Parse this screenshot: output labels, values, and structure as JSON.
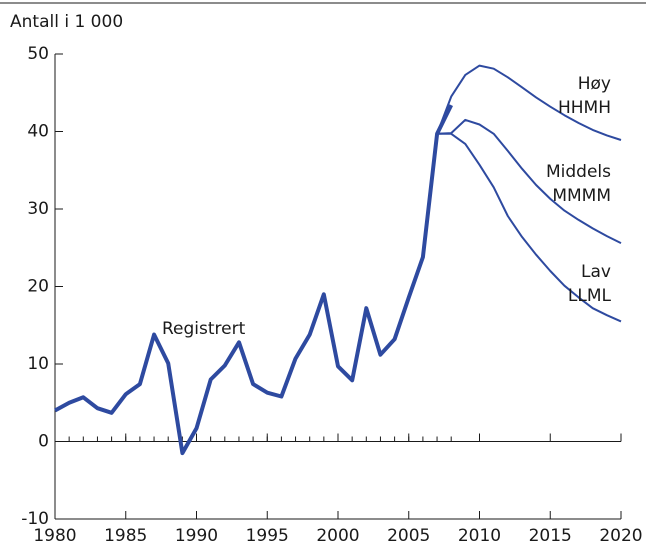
{
  "chart_data": {
    "type": "line",
    "ylabel": "Antall i 1 000",
    "xlim": [
      1980,
      2020
    ],
    "xticks": [
      1980,
      1985,
      1990,
      1995,
      2000,
      2005,
      2010,
      2015,
      2020
    ],
    "ylim": [
      -10,
      50
    ],
    "yticks": [
      -10,
      0,
      10,
      20,
      30,
      40,
      50
    ],
    "series": [
      {
        "name": "Registrert",
        "color": "#2e4aa0",
        "x": [
          1980,
          1981,
          1982,
          1983,
          1984,
          1985,
          1986,
          1987,
          1988,
          1989,
          1990,
          1991,
          1992,
          1993,
          1994,
          1995,
          1996,
          1997,
          1998,
          1999,
          2000,
          2001,
          2002,
          2003,
          2004,
          2005,
          2006,
          2007,
          2008
        ],
        "values": [
          4.0,
          5.0,
          5.7,
          4.3,
          3.7,
          6.1,
          7.4,
          13.8,
          10.1,
          -1.5,
          1.7,
          8.0,
          9.8,
          12.8,
          7.4,
          6.3,
          5.8,
          10.7,
          13.8,
          19.0,
          9.7,
          7.9,
          17.2,
          11.2,
          13.2,
          18.6,
          23.8,
          39.7,
          43.4
        ]
      },
      {
        "name": "Høy",
        "code": "HHMH",
        "color": "#2e4aa0",
        "x": [
          2007,
          2008,
          2009,
          2010,
          2011,
          2012,
          2013,
          2014,
          2015,
          2016,
          2017,
          2018,
          2019,
          2020
        ],
        "values": [
          39.7,
          44.5,
          47.3,
          48.5,
          48.1,
          47.0,
          45.7,
          44.4,
          43.2,
          42.1,
          41.1,
          40.2,
          39.5,
          38.9
        ]
      },
      {
        "name": "Middels",
        "code": "MMMM",
        "color": "#2e4aa0",
        "x": [
          2007,
          2008,
          2009,
          2010,
          2011,
          2012,
          2013,
          2014,
          2015,
          2016,
          2017,
          2018,
          2019,
          2020
        ],
        "values": [
          39.7,
          39.8,
          41.5,
          40.9,
          39.7,
          37.5,
          35.2,
          33.1,
          31.3,
          29.8,
          28.6,
          27.5,
          26.5,
          25.6
        ]
      },
      {
        "name": "Lav",
        "code": "LLML",
        "color": "#2e4aa0",
        "x": [
          2007,
          2008,
          2009,
          2010,
          2011,
          2012,
          2013,
          2014,
          2015,
          2016,
          2017,
          2018,
          2019,
          2020
        ],
        "values": [
          39.7,
          39.7,
          38.4,
          35.7,
          32.8,
          29.1,
          26.4,
          24.1,
          22.0,
          20.1,
          18.6,
          17.2,
          16.3,
          15.5
        ]
      }
    ]
  }
}
